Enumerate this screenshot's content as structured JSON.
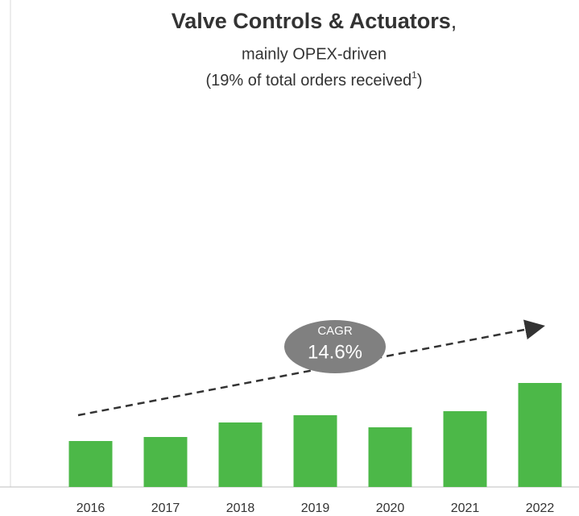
{
  "chart_data": {
    "type": "bar",
    "title": "Valve Controls & Actuators",
    "title_suffix": ",",
    "subtitle": "mainly OPEX-driven",
    "note": {
      "text": "(19% of total orders received",
      "ref": "1",
      "close": ")"
    },
    "categories": [
      "2016",
      "2017",
      "2018",
      "2019",
      "2020",
      "2021",
      "2022"
    ],
    "values": [
      57,
      62,
      80,
      89,
      74,
      94,
      129
    ],
    "color": "#4cb848",
    "annotation": {
      "label": "CAGR",
      "value": 14.6,
      "value_label": "14.6%"
    }
  }
}
